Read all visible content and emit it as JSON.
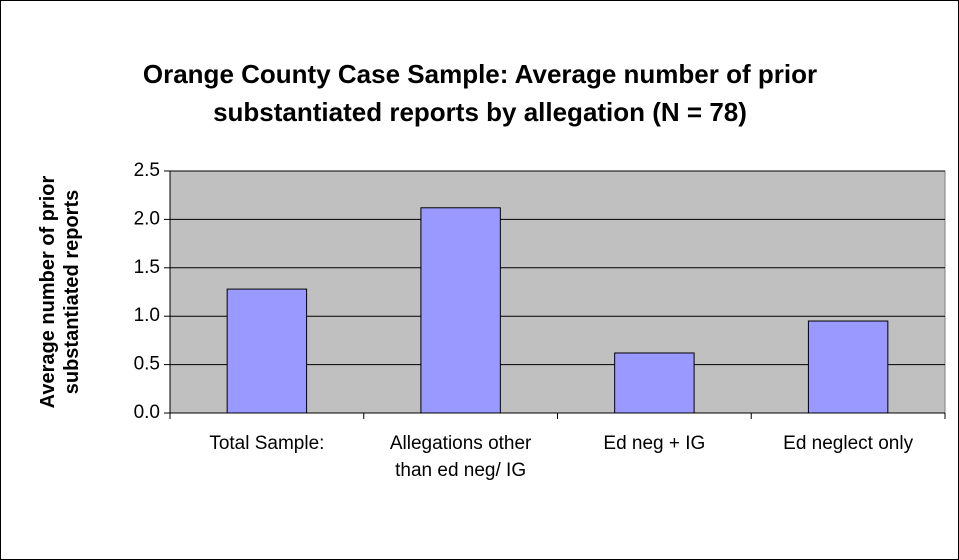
{
  "chart_data": {
    "type": "bar",
    "title": "Orange County Case Sample: Average number of prior substantiated reports by allegation (N = 78)",
    "y_label": "Average number of prior substantiated reports",
    "categories": [
      "Total Sample:",
      "Allegations other than ed neg/ IG",
      "Ed neg + IG",
      "Ed neglect only"
    ],
    "values": [
      1.28,
      2.12,
      0.62,
      0.95
    ],
    "color": "#9999ff",
    "ylim": [
      0,
      2.5
    ],
    "yticks": [
      {
        "value": 0,
        "label": "0.0"
      },
      0.5,
      {
        "value": 1,
        "label": "1.0"
      },
      1.5,
      {
        "value": 2,
        "label": "2.0"
      },
      2.5
    ],
    "grid": true
  }
}
